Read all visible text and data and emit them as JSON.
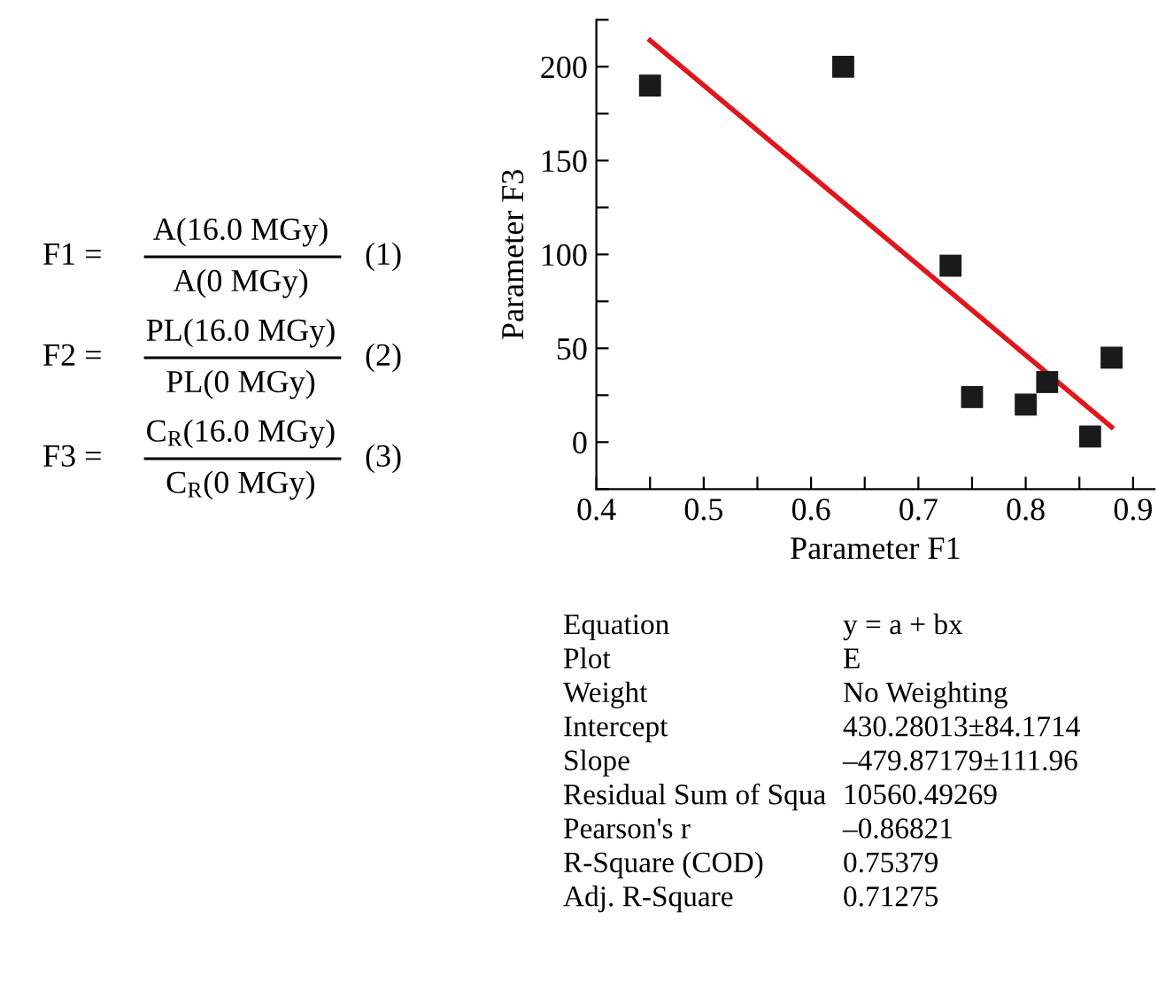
{
  "chart_data": {
    "type": "scatter",
    "xlabel": "Parameter F1",
    "ylabel": "Parameter F3",
    "series": [
      {
        "type": "scatter",
        "color": "#1a1a1a",
        "marker": "square",
        "x": [
          0.45,
          0.63,
          0.73,
          0.75,
          0.8,
          0.82,
          0.86,
          0.88
        ],
        "values": [
          190,
          200,
          94,
          24,
          20,
          32,
          3,
          45
        ]
      },
      {
        "type": "line",
        "color": "#e0161c",
        "marker": "none",
        "line_style": "solid",
        "x": [
          0.45,
          0.88
        ],
        "values": [
          214,
          8
        ]
      }
    ],
    "xlim": [
      0.4,
      0.92
    ],
    "ylim": [
      -25,
      225
    ],
    "xticks": [
      0.4,
      {
        "value": 0.45,
        "label": null
      },
      0.5,
      {
        "value": 0.55,
        "label": null
      },
      0.6,
      {
        "value": 0.65,
        "label": null
      },
      0.7,
      {
        "value": 0.75,
        "label": null
      },
      0.8,
      {
        "value": 0.85,
        "label": null
      },
      0.9
    ],
    "yticks": [
      {
        "value": -25,
        "label": null
      },
      0,
      {
        "value": 25,
        "label": null
      },
      50,
      {
        "value": 75,
        "label": null
      },
      100,
      {
        "value": 125,
        "label": null
      },
      150,
      {
        "value": 175,
        "label": null
      },
      200,
      {
        "value": 225,
        "label": null
      }
    ],
    "grid": false,
    "legend": false,
    "annotations": [
      "F1 =",
      "A(16.0 MGy)",
      "A(0 MGy)",
      "(1)",
      "F2 =",
      "PL(16.0 MGy)",
      "PL(0 MGy)",
      "(2)",
      "F3 =",
      "C$_{R}$(16.0 MGy)",
      "C$_{R}$(0 MGy)",
      "(3)",
      "Equation",
      "y = a + bx",
      "Plot",
      "E",
      "Weight",
      "No Weighting",
      "Intercept",
      "430.28013±84.1714",
      "Slope",
      "–479.87179±111.96",
      "Residual Sum of Squa",
      "10560.49269",
      "Pearson's r",
      "–0.86821",
      "R-Square (COD)",
      "0.75379",
      "Adj. R-Square",
      "0.71275"
    ]
  }
}
